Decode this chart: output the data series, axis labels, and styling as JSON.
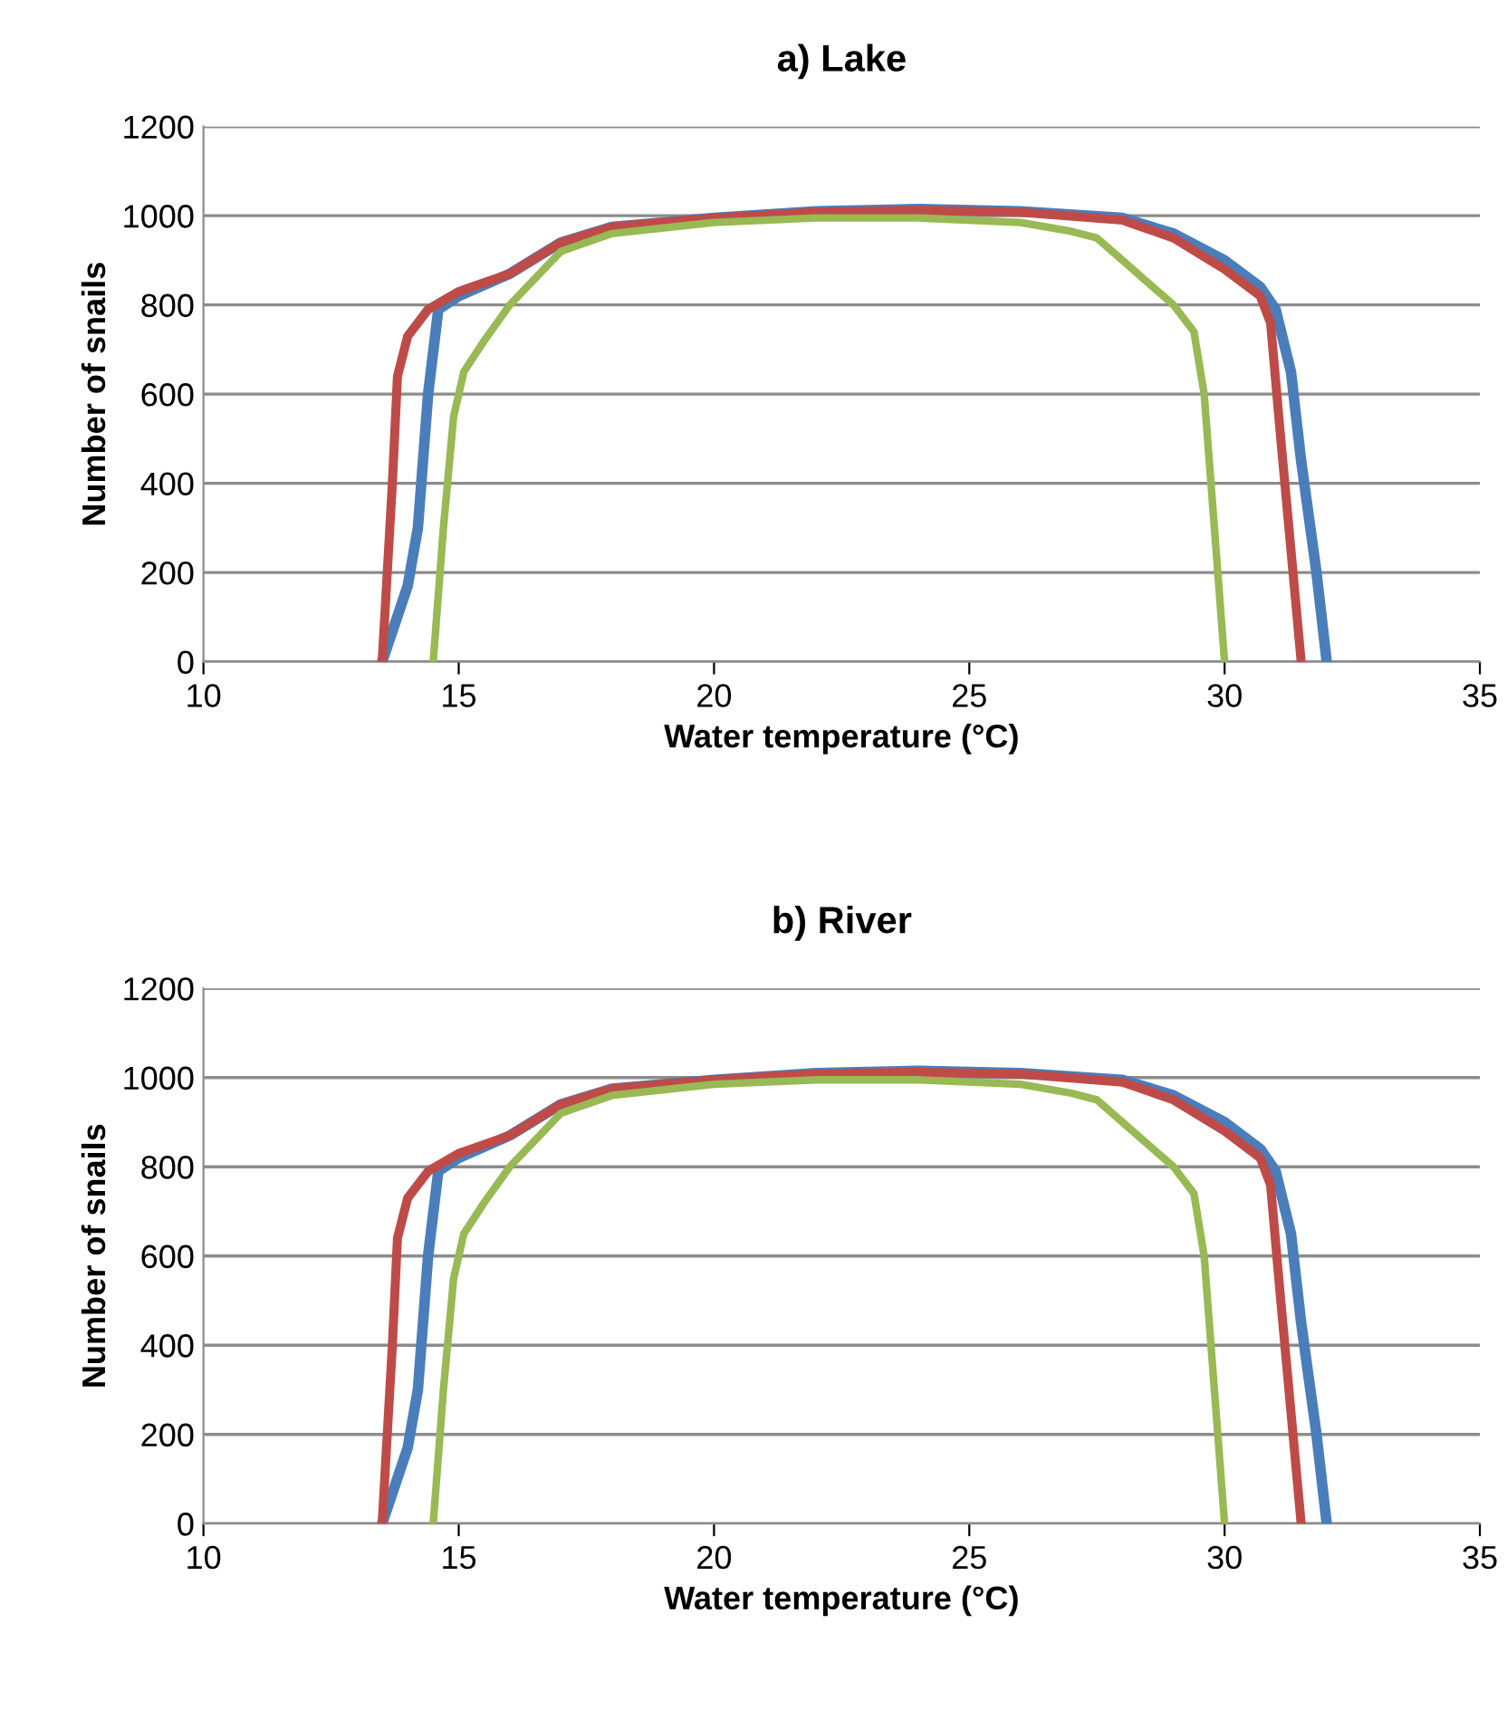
{
  "chart_data": [
    {
      "type": "line",
      "title": "a) Lake",
      "xlabel": "Water temperature (°C)",
      "ylabel": "Number of snails",
      "xlim": [
        10,
        35
      ],
      "xticks": [
        10,
        15,
        20,
        25,
        30,
        35
      ],
      "ylim": [
        0,
        1200
      ],
      "yticks": [
        0,
        200,
        400,
        600,
        800,
        1000,
        1200
      ],
      "grid": "y",
      "legend": false,
      "series": [
        {
          "color": "#4a7ebb",
          "x": [
            13.5,
            14.0,
            14.2,
            14.4,
            14.6,
            15,
            16,
            17,
            18,
            20,
            22,
            24,
            26,
            28,
            29,
            30,
            30.7,
            31.0,
            31.3,
            31.5,
            31.8,
            32
          ],
          "values": [
            0,
            170,
            300,
            600,
            790,
            820,
            870,
            940,
            975,
            995,
            1010,
            1015,
            1010,
            995,
            960,
            900,
            840,
            790,
            650,
            450,
            200,
            0
          ]
        },
        {
          "color": "#be4b48",
          "x": [
            13.5,
            13.7,
            13.8,
            14.0,
            14.4,
            15,
            16,
            17,
            18,
            20,
            22,
            24,
            26,
            28,
            29,
            30,
            30.7,
            30.9,
            31.1,
            31.3,
            31.5
          ],
          "values": [
            0,
            400,
            640,
            730,
            790,
            830,
            870,
            940,
            975,
            995,
            1008,
            1012,
            1008,
            990,
            950,
            880,
            820,
            760,
            500,
            250,
            0
          ]
        },
        {
          "color": "#98b954",
          "x": [
            14.5,
            14.7,
            14.9,
            15.1,
            15.5,
            16,
            17,
            18,
            20,
            22,
            24,
            26,
            27,
            27.5,
            28,
            29,
            29.4,
            29.6,
            29.8,
            30
          ],
          "values": [
            0,
            300,
            550,
            650,
            720,
            800,
            920,
            960,
            985,
            995,
            995,
            985,
            965,
            950,
            900,
            800,
            740,
            600,
            300,
            0
          ]
        }
      ]
    },
    {
      "type": "line",
      "title": "b) River",
      "xlabel": "Water temperature (°C)",
      "ylabel": "Number of snails",
      "xlim": [
        10,
        35
      ],
      "xticks": [
        10,
        15,
        20,
        25,
        30,
        35
      ],
      "ylim": [
        0,
        1200
      ],
      "yticks": [
        0,
        200,
        400,
        600,
        800,
        1000,
        1200
      ],
      "grid": "y",
      "legend": false,
      "series": [
        {
          "color": "#4a7ebb",
          "x": [
            13.5,
            14.0,
            14.2,
            14.4,
            14.6,
            15,
            16,
            17,
            18,
            20,
            22,
            24,
            26,
            28,
            29,
            30,
            30.7,
            31.0,
            31.3,
            31.5,
            31.8,
            32
          ],
          "values": [
            0,
            170,
            300,
            600,
            790,
            820,
            870,
            940,
            975,
            995,
            1010,
            1015,
            1010,
            995,
            960,
            900,
            840,
            790,
            650,
            450,
            200,
            0
          ]
        },
        {
          "color": "#be4b48",
          "x": [
            13.5,
            13.7,
            13.8,
            14.0,
            14.4,
            15,
            16,
            17,
            18,
            20,
            22,
            24,
            26,
            28,
            29,
            30,
            30.7,
            30.9,
            31.1,
            31.3,
            31.5
          ],
          "values": [
            0,
            400,
            640,
            730,
            790,
            830,
            870,
            940,
            975,
            995,
            1008,
            1012,
            1008,
            990,
            950,
            880,
            820,
            760,
            500,
            250,
            0
          ]
        },
        {
          "color": "#98b954",
          "x": [
            14.5,
            14.7,
            14.9,
            15.1,
            15.5,
            16,
            17,
            18,
            20,
            22,
            24,
            26,
            27,
            27.5,
            28,
            29,
            29.4,
            29.6,
            29.8,
            30
          ],
          "values": [
            0,
            300,
            550,
            650,
            720,
            800,
            920,
            960,
            985,
            995,
            995,
            985,
            965,
            950,
            900,
            800,
            740,
            600,
            300,
            0
          ]
        }
      ]
    }
  ]
}
